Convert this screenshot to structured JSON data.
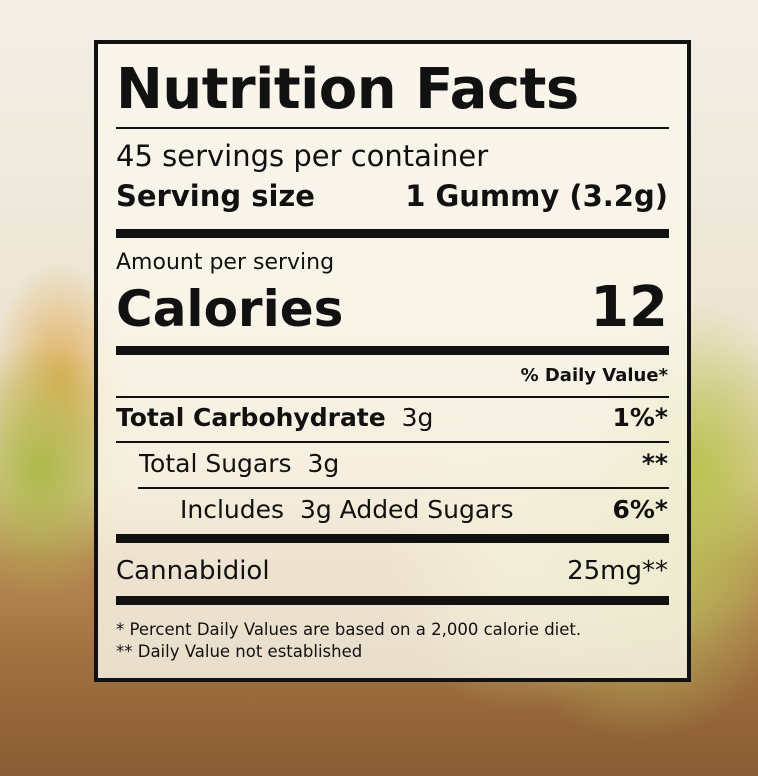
{
  "label": {
    "title": "Nutrition Facts",
    "servings_per_container": "45 servings per container",
    "serving_size_label": "Serving size",
    "serving_size_value": "1 Gummy (3.2g)",
    "amount_per_serving": "Amount per serving",
    "calories_label": "Calories",
    "calories_value": "12",
    "daily_value_header": "% Daily Value*",
    "rows": [
      {
        "name": "Total Carbohydrate",
        "amount": "3g",
        "dv": "1%*"
      },
      {
        "name": "Total Sugars",
        "amount": "3g",
        "dv": "**"
      },
      {
        "name": "Includes",
        "amount": "3g Added Sugars",
        "dv": "6%*"
      },
      {
        "name": "Cannabidiol",
        "amount": "",
        "dv": "25mg**"
      }
    ],
    "footnotes": [
      "* Percent Daily Values are based on a 2,000 calorie diet.",
      "** Daily Value not established"
    ]
  }
}
